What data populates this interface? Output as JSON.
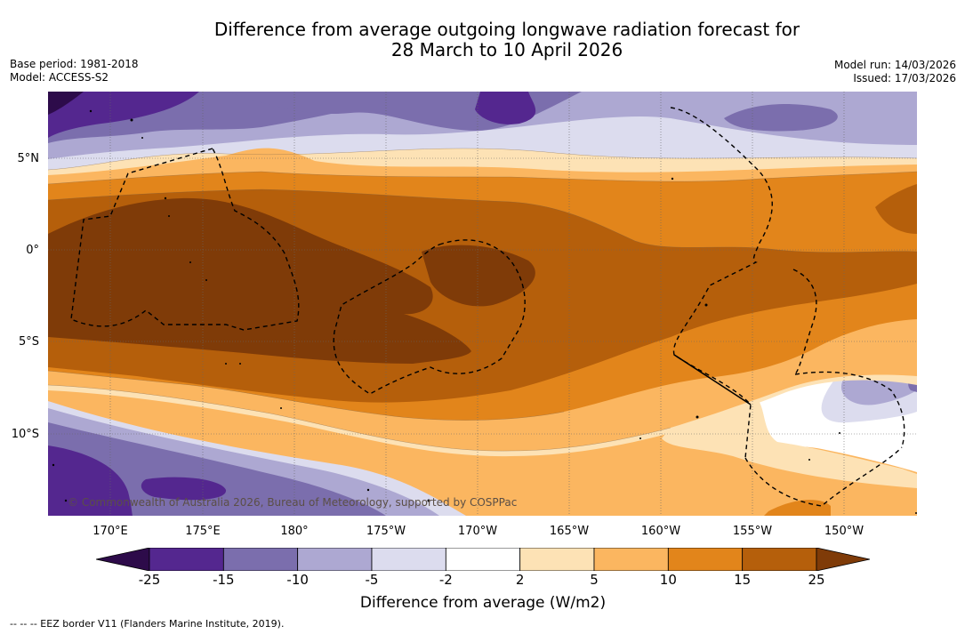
{
  "title": {
    "line1": "Difference from average outgoing longwave radiation forecast for",
    "line2": "28 March to 10 April 2026"
  },
  "meta": {
    "base_period": "Base period: 1981-2018",
    "model": "Model: ACCESS-S2",
    "model_run": "Model run: 14/03/2026",
    "issued": "Issued: 17/03/2026"
  },
  "map": {
    "lat_labels": [
      "5°N",
      "0°",
      "5°S",
      "10°S"
    ],
    "lon_labels": [
      "170°E",
      "175°E",
      "180°",
      "175°W",
      "170°W",
      "165°W",
      "160°W",
      "155°W",
      "150°W"
    ],
    "copyright": "© Commonwealth of Australia 2026, Bureau of Meteorology, supported by COSPPac"
  },
  "colorbar": {
    "ticks": [
      "-25",
      "-15",
      "-10",
      "-5",
      "-2",
      "2",
      "5",
      "10",
      "15",
      "25"
    ],
    "colors": [
      "#2d0b4a",
      "#54278f",
      "#7b6ead",
      "#ada8d2",
      "#dcdcee",
      "#ffffff",
      "#fde2b5",
      "#fbb660",
      "#e2851b",
      "#b55f0b",
      "#7f3b08"
    ],
    "label": "Difference from average (W/m2)"
  },
  "footer": "--  --  -- EEZ border V11 (Flanders Marine Institute, 2019)."
}
